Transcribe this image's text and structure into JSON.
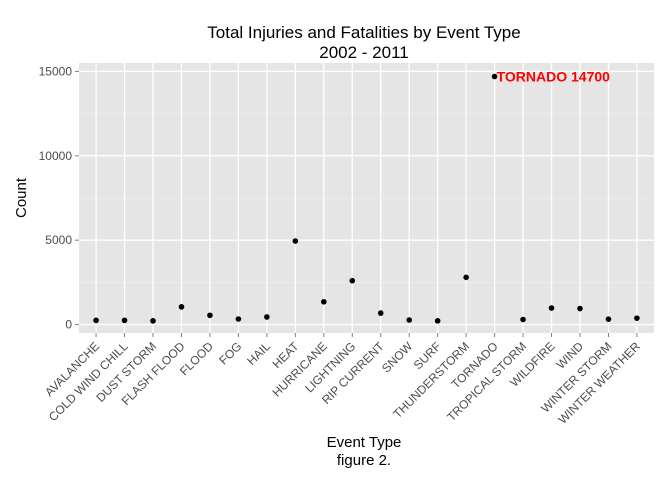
{
  "chart_data": {
    "type": "scatter",
    "title": "Total Injuries and Fatalities by Event Type",
    "subtitle": "2002  -  2011",
    "xlabel": "Event Type",
    "caption": "figure 2.",
    "ylabel": "Count",
    "categories": [
      "AVALANCHE",
      "COLD WIND CHILL",
      "DUST STORM",
      "FLASH FLOOD",
      "FLOOD",
      "FOG",
      "HAIL",
      "HEAT",
      "HURRICANE",
      "LIGHTNING",
      "RIP CURRENT",
      "SNOW",
      "SURF",
      "THUNDERSTORM",
      "TORNADO",
      "TROPICAL STORM",
      "WILDFIRE",
      "WIND",
      "WINTER STORM",
      "WINTER WEATHER"
    ],
    "values": [
      250,
      250,
      220,
      1050,
      550,
      330,
      450,
      4950,
      1350,
      2600,
      680,
      270,
      220,
      2800,
      14700,
      300,
      980,
      950,
      320,
      380
    ],
    "ylim": [
      -500,
      15500
    ],
    "yticks": [
      0,
      5000,
      10000,
      15000
    ],
    "ytick_labels": [
      "0",
      "5000",
      "10000",
      "15000"
    ],
    "grid": true,
    "annotation": {
      "text": "TORNADO 14700",
      "category": "TORNADO",
      "value": 14700,
      "color": "#ff0000"
    },
    "colors": {
      "panel": "#e5e5e5",
      "grid": "#ffffff",
      "point": "#000000"
    }
  }
}
